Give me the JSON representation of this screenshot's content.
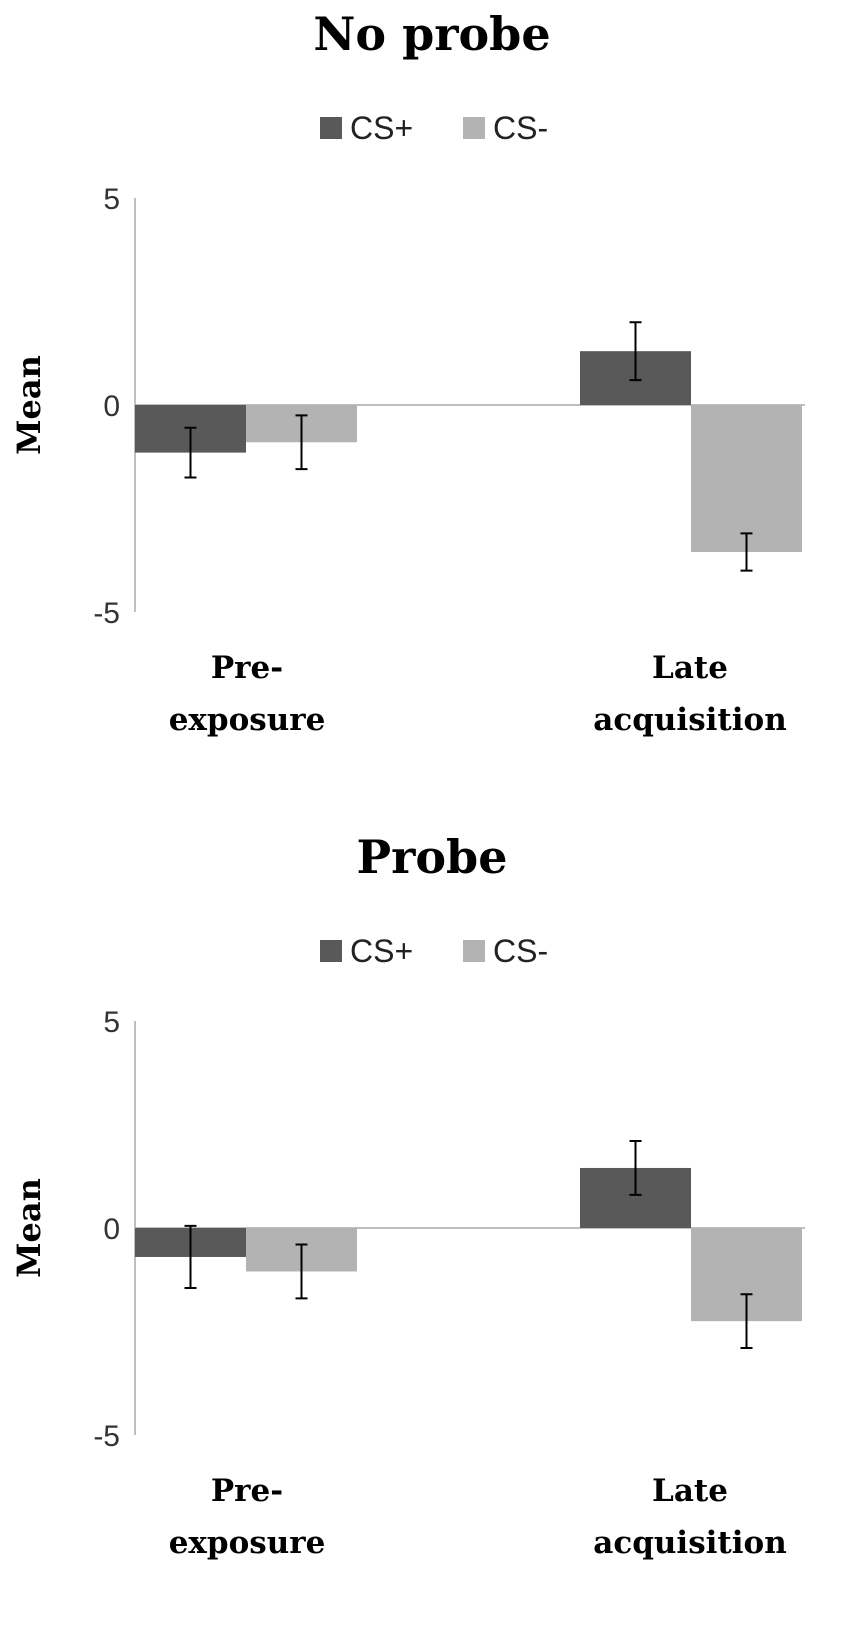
{
  "chart_data": [
    {
      "type": "bar",
      "title": "No probe",
      "ylabel": "Mean",
      "ylim": [
        -5,
        5
      ],
      "yticks": [
        "5",
        "0",
        "-5"
      ],
      "categories": [
        [
          "Pre-",
          "exposure"
        ],
        [
          "Late",
          "acquisition"
        ]
      ],
      "legend_position": "top",
      "series": [
        {
          "name": "CS+",
          "color": "#595959",
          "values": [
            -1.15,
            1.3
          ],
          "errors": [
            0.6,
            0.7
          ]
        },
        {
          "name": "CS-",
          "color": "#b3b3b3",
          "values": [
            -0.9,
            -3.55
          ],
          "errors": [
            0.65,
            0.45
          ]
        }
      ]
    },
    {
      "type": "bar",
      "title": "Probe",
      "ylabel": "Mean",
      "ylim": [
        -5,
        5
      ],
      "yticks": [
        "5",
        "0",
        "-5"
      ],
      "categories": [
        [
          "Pre-",
          "exposure"
        ],
        [
          "Late",
          "acquisition"
        ]
      ],
      "legend_position": "top",
      "series": [
        {
          "name": "CS+",
          "color": "#595959",
          "values": [
            -0.7,
            1.45
          ],
          "errors": [
            0.75,
            0.65
          ]
        },
        {
          "name": "CS-",
          "color": "#b3b3b3",
          "values": [
            -1.05,
            -2.25
          ],
          "errors": [
            0.65,
            0.65
          ]
        }
      ]
    }
  ]
}
